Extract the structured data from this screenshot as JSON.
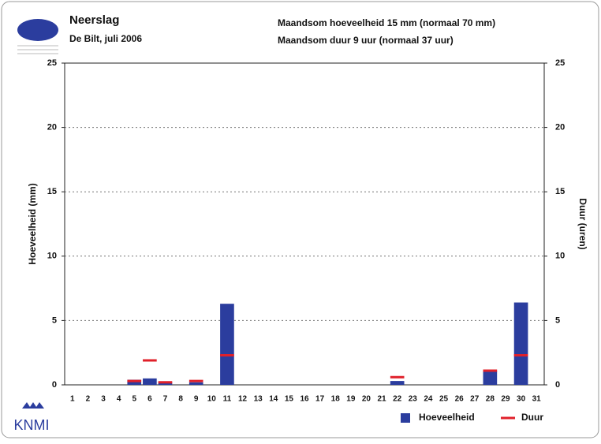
{
  "chart_data": {
    "type": "bar",
    "title": "Neerslag",
    "subtitle": "De Bilt, juli 2006",
    "annotations": [
      "Maandsom hoeveelheid  15 mm (normaal 70 mm)",
      "Maandsom duur  9 uur (normaal 37 uur)"
    ],
    "y_label": "Hoeveelheid (mm)",
    "y2_label": "Duur (uren)",
    "categories": [
      "1",
      "2",
      "3",
      "4",
      "5",
      "6",
      "7",
      "8",
      "9",
      "10",
      "11",
      "12",
      "13",
      "14",
      "15",
      "16",
      "17",
      "18",
      "19",
      "20",
      "21",
      "22",
      "23",
      "24",
      "25",
      "26",
      "27",
      "28",
      "29",
      "30",
      "31"
    ],
    "series": [
      {
        "name": "Hoeveelheid",
        "color": "#2b3d9e",
        "values": [
          0,
          0,
          0,
          0,
          0.4,
          0.5,
          0.2,
          0,
          0.2,
          0,
          6.3,
          0,
          0,
          0,
          0,
          0,
          0,
          0,
          0,
          0,
          0,
          0.3,
          0,
          0,
          0,
          0,
          0,
          1.1,
          0,
          6.4,
          0
        ]
      },
      {
        "name": "Duur",
        "color": "#e0202a",
        "axis": "y2",
        "values": [
          null,
          null,
          null,
          null,
          0.3,
          1.9,
          0.2,
          null,
          0.3,
          null,
          2.3,
          null,
          null,
          null,
          null,
          null,
          null,
          null,
          null,
          null,
          null,
          0.6,
          null,
          null,
          null,
          null,
          null,
          1.1,
          null,
          2.3,
          null
        ]
      }
    ],
    "ylim": [
      0,
      25
    ],
    "yticks": [
      0,
      5,
      10,
      15,
      20,
      25
    ],
    "y2lim": [
      0,
      25
    ],
    "y2ticks": [
      0,
      5,
      10,
      15,
      20,
      25
    ],
    "grid": true,
    "legend": "bottom-right"
  },
  "logo": "KNMI"
}
